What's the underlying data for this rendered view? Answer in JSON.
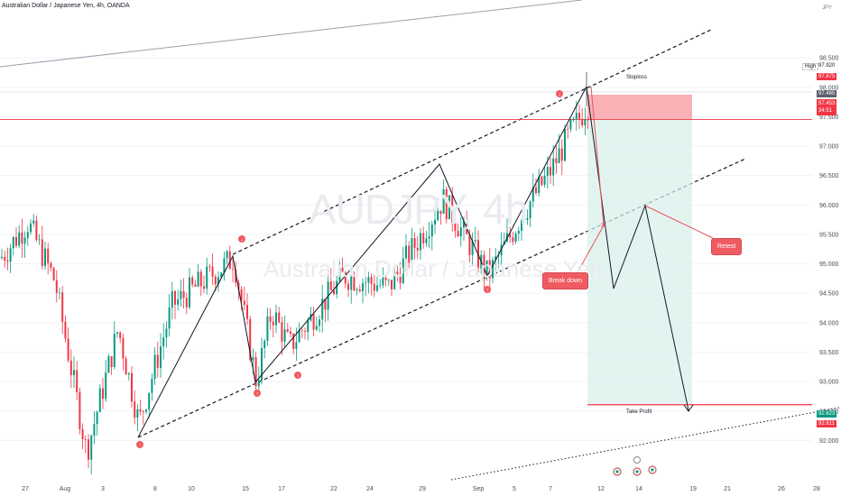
{
  "header": {
    "symbol_line": "Australian Dollar / Japanese Yen, 4h, OANDA"
  },
  "watermark": {
    "ticker": "AUDJPY, 4h",
    "name": "Australian Dollar / Japanese Yen"
  },
  "price_axis": {
    "currency": "JPY",
    "high_label": "High",
    "high_value": "97.920",
    "stop_value": "97.875",
    "current_value": "97.465",
    "entry_value": "97.453",
    "countdown": "34:51",
    "tp_value": "92.623",
    "tp2_value": "92.611"
  },
  "annotations": {
    "stoploss": "Stoploss",
    "take_profit": "Take Profit",
    "retest": "Retest",
    "break_down": "Break down"
  },
  "colors": {
    "up": "#089981",
    "down": "#f23645",
    "accent": "#f05b62",
    "stop_zone": "#f9a3a9",
    "profit_zone": "#d7f0ea"
  },
  "chart_data": {
    "type": "candlestick",
    "title": "Australian Dollar / Japanese Yen, 4h, OANDA",
    "ylim": [
      91.7,
      98.9
    ],
    "y_ticks": [
      98.5,
      98.0,
      97.5,
      97.0,
      96.5,
      96.0,
      95.5,
      95.0,
      94.5,
      94.0,
      93.5,
      93.0,
      92.5,
      92.0
    ],
    "y_tick_labels": [
      "98.500",
      "98.000",
      "97.500",
      "97.000",
      "96.500",
      "96.000",
      "95.500",
      "95.000",
      "94.500",
      "94.000",
      "93.500",
      "93.000",
      "92.500",
      "92.000"
    ],
    "x_ticks": [
      "27",
      "Aug",
      "3",
      "8",
      "10",
      "15",
      "17",
      "22",
      "24",
      "29",
      "Sep",
      "5",
      "7",
      "12",
      "14",
      "19",
      "21",
      "26",
      "28"
    ],
    "trade": {
      "entry": 97.453,
      "stop": 97.875,
      "target": 92.623
    },
    "projected_path": [
      97.65,
      95.55,
      94.6,
      95.9,
      92.65
    ]
  }
}
